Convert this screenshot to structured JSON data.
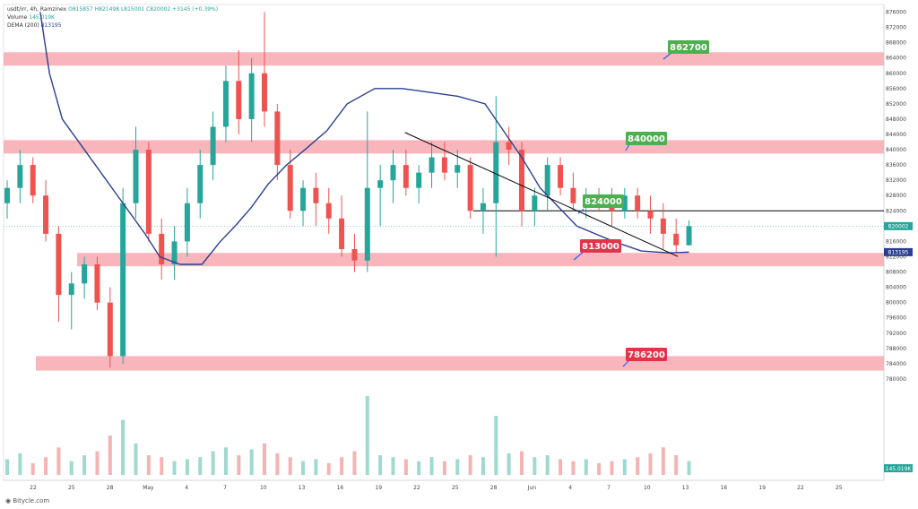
{
  "legend": {
    "symbol_line": "usdt/irr, 4h, Ramzinex",
    "ohlc": "O815857 H821498 L815001 C820002 +3145 (+0.39%)",
    "volume_label": "Volume",
    "volume_value": "145.019K",
    "dema_label": "DEMA (200)",
    "dema_value": "813195"
  },
  "footer": {
    "text": "Bitycle.com"
  },
  "colors": {
    "up": "#26a69a",
    "down": "#ef5350",
    "zone": "#f7a8b0",
    "dema": "#2b3f8f",
    "label_green": "#4caf50",
    "label_red": "#e0344a"
  },
  "chart_data": {
    "type": "candlestick",
    "timeframe": "4h",
    "ylim": [
      776000,
      878000
    ],
    "y_ticks": [
      780000,
      784000,
      788000,
      792000,
      796000,
      800000,
      804000,
      808000,
      812000,
      816000,
      820000,
      824000,
      828000,
      832000,
      836000,
      840000,
      844000,
      848000,
      852000,
      856000,
      860000,
      864000,
      868000,
      872000,
      876000
    ],
    "x_ticks": [
      "22",
      "25",
      "28",
      "May",
      "4",
      "7",
      "10",
      "13",
      "16",
      "19",
      "22",
      "25",
      "28",
      "Jun",
      "4",
      "7",
      "10",
      "13",
      "16",
      "19",
      "22",
      "25"
    ],
    "last_price": 820002,
    "last_price_label": "820002",
    "dema_last_label": "813195",
    "volume_last_label": "145.019K",
    "support_resistance_zones": [
      {
        "label": "862700",
        "low": 862000,
        "high": 865500,
        "tag": "resistance"
      },
      {
        "label": "840000",
        "low": 839000,
        "high": 842500,
        "tag": "resistance"
      },
      {
        "label": "813000",
        "low": 809500,
        "high": 813000,
        "tag": "support"
      },
      {
        "label": "786200",
        "low": 782200,
        "high": 786000,
        "tag": "support"
      }
    ],
    "horizontal_lines": [
      {
        "label": "824000",
        "value": 824000
      }
    ],
    "trend_line": {
      "start": [
        19.6,
        844500
      ],
      "end": [
        41.3,
        813000
      ]
    },
    "candles": [
      [
        0,
        826000,
        832000,
        822000,
        830000
      ],
      [
        0.7,
        830000,
        840000,
        826000,
        836000
      ],
      [
        1.4,
        836000,
        838000,
        826000,
        828000
      ],
      [
        2.1,
        828000,
        832000,
        816000,
        818000
      ],
      [
        2.8,
        818000,
        820000,
        795000,
        802000
      ],
      [
        3.5,
        802000,
        808000,
        793000,
        805000
      ],
      [
        4.2,
        805000,
        812000,
        801000,
        810000
      ],
      [
        4.9,
        810000,
        812000,
        798000,
        800000
      ],
      [
        5.6,
        800000,
        804000,
        783000,
        786000
      ],
      [
        6.3,
        786000,
        830000,
        784000,
        826000
      ],
      [
        7.0,
        826000,
        846000,
        822000,
        840000
      ],
      [
        7.7,
        840000,
        842000,
        816000,
        818000
      ],
      [
        8.4,
        818000,
        822000,
        806000,
        810000
      ],
      [
        9.1,
        810000,
        820000,
        806000,
        816000
      ],
      [
        9.8,
        816000,
        830000,
        812000,
        826000
      ],
      [
        10.5,
        826000,
        840000,
        822000,
        836000
      ],
      [
        11.2,
        836000,
        850000,
        832000,
        846000
      ],
      [
        11.9,
        846000,
        862000,
        842000,
        858000
      ],
      [
        12.6,
        858000,
        866000,
        844000,
        848000
      ],
      [
        13.3,
        848000,
        864000,
        842000,
        860000
      ],
      [
        14.0,
        860000,
        876000,
        846000,
        850000
      ],
      [
        14.7,
        850000,
        852000,
        832000,
        836000
      ],
      [
        15.4,
        836000,
        840000,
        822000,
        824000
      ],
      [
        16.1,
        824000,
        832000,
        820000,
        830000
      ],
      [
        16.8,
        830000,
        834000,
        820000,
        826000
      ],
      [
        17.5,
        826000,
        830000,
        818000,
        822000
      ],
      [
        18.2,
        822000,
        828000,
        812000,
        814000
      ],
      [
        18.9,
        814000,
        818000,
        808000,
        811000
      ],
      [
        19.6,
        811000,
        850000,
        808000,
        830000
      ],
      [
        20.3,
        830000,
        836000,
        820000,
        832000
      ],
      [
        21.0,
        832000,
        840000,
        826000,
        836000
      ],
      [
        21.7,
        836000,
        840000,
        828000,
        830000
      ],
      [
        22.4,
        830000,
        836000,
        826000,
        834000
      ],
      [
        23.1,
        834000,
        842000,
        830000,
        838000
      ],
      [
        23.8,
        838000,
        842000,
        832000,
        834000
      ],
      [
        24.5,
        834000,
        840000,
        830000,
        836000
      ],
      [
        25.2,
        836000,
        838000,
        822000,
        824000
      ],
      [
        25.9,
        824000,
        830000,
        818000,
        826000
      ],
      [
        26.6,
        826000,
        854000,
        812000,
        842000
      ],
      [
        27.3,
        842000,
        846000,
        836000,
        840000
      ],
      [
        28.0,
        840000,
        842000,
        820000,
        824000
      ],
      [
        28.7,
        824000,
        830000,
        820000,
        828000
      ],
      [
        29.4,
        828000,
        838000,
        824000,
        836000
      ],
      [
        30.1,
        836000,
        838000,
        828000,
        830000
      ],
      [
        30.8,
        830000,
        834000,
        824000,
        826000
      ],
      [
        31.5,
        826000,
        830000,
        822000,
        828000
      ],
      [
        32.2,
        828000,
        830000,
        824000,
        826000
      ],
      [
        32.9,
        826000,
        830000,
        820000,
        824000
      ],
      [
        33.6,
        824000,
        830000,
        822000,
        828000
      ],
      [
        34.3,
        828000,
        830000,
        822000,
        824000
      ],
      [
        35.0,
        824000,
        828000,
        818000,
        822000
      ],
      [
        35.7,
        822000,
        826000,
        814000,
        818000
      ],
      [
        36.4,
        818000,
        822000,
        813000,
        815000
      ],
      [
        37.1,
        815000,
        821500,
        815000,
        820000
      ]
    ],
    "dema_points": [
      [
        1.8,
        876000
      ],
      [
        2.3,
        860000
      ],
      [
        3.0,
        848000
      ],
      [
        4.5,
        838000
      ],
      [
        6.0,
        828000
      ],
      [
        7.5,
        818000
      ],
      [
        8.3,
        812000
      ],
      [
        9.4,
        810000
      ],
      [
        10.6,
        810000
      ],
      [
        11.6,
        816000
      ],
      [
        12.4,
        820000
      ],
      [
        13.3,
        825000
      ],
      [
        14.2,
        831000
      ],
      [
        15.2,
        836000
      ],
      [
        16.2,
        840000
      ],
      [
        17.4,
        845000
      ],
      [
        18.5,
        852000
      ],
      [
        20.0,
        856000
      ],
      [
        21.5,
        856000
      ],
      [
        23.0,
        855000
      ],
      [
        24.5,
        854000
      ],
      [
        26.0,
        852000
      ],
      [
        27.0,
        845000
      ],
      [
        28.0,
        838000
      ],
      [
        29.0,
        830000
      ],
      [
        30.0,
        825000
      ],
      [
        31.0,
        820000
      ],
      [
        32.0,
        818000
      ],
      [
        33.0,
        816000
      ],
      [
        34.5,
        813500
      ],
      [
        36.0,
        813000
      ],
      [
        37.1,
        813195
      ]
    ],
    "volume": [
      [
        0,
        8,
        1
      ],
      [
        0.7,
        11,
        1
      ],
      [
        1.4,
        6,
        0
      ],
      [
        2.1,
        9,
        0
      ],
      [
        2.8,
        14,
        0
      ],
      [
        3.5,
        7,
        1
      ],
      [
        4.2,
        10,
        1
      ],
      [
        4.9,
        12,
        0
      ],
      [
        5.6,
        20,
        0
      ],
      [
        6.3,
        28,
        1
      ],
      [
        7.0,
        16,
        1
      ],
      [
        7.7,
        10,
        0
      ],
      [
        8.4,
        9,
        0
      ],
      [
        9.1,
        7,
        1
      ],
      [
        9.8,
        8,
        1
      ],
      [
        10.5,
        9,
        1
      ],
      [
        11.2,
        12,
        1
      ],
      [
        11.9,
        14,
        1
      ],
      [
        12.6,
        10,
        0
      ],
      [
        13.3,
        13,
        1
      ],
      [
        14.0,
        16,
        0
      ],
      [
        14.7,
        11,
        0
      ],
      [
        15.4,
        9,
        0
      ],
      [
        16.1,
        7,
        1
      ],
      [
        16.8,
        8,
        1
      ],
      [
        17.5,
        6,
        0
      ],
      [
        18.2,
        9,
        0
      ],
      [
        18.9,
        12,
        0
      ],
      [
        19.6,
        40,
        1
      ],
      [
        20.3,
        10,
        1
      ],
      [
        21.0,
        9,
        1
      ],
      [
        21.7,
        8,
        0
      ],
      [
        22.4,
        7,
        1
      ],
      [
        23.1,
        9,
        1
      ],
      [
        23.8,
        7,
        0
      ],
      [
        24.5,
        8,
        1
      ],
      [
        25.2,
        10,
        0
      ],
      [
        25.9,
        9,
        1
      ],
      [
        26.6,
        30,
        1
      ],
      [
        27.3,
        11,
        1
      ],
      [
        28.0,
        12,
        0
      ],
      [
        28.7,
        9,
        1
      ],
      [
        29.4,
        10,
        1
      ],
      [
        30.1,
        8,
        0
      ],
      [
        30.8,
        7,
        0
      ],
      [
        31.5,
        8,
        1
      ],
      [
        32.2,
        6,
        0
      ],
      [
        32.9,
        7,
        0
      ],
      [
        33.6,
        8,
        1
      ],
      [
        34.3,
        9,
        0
      ],
      [
        35.0,
        11,
        0
      ],
      [
        35.7,
        14,
        0
      ],
      [
        36.4,
        10,
        0
      ],
      [
        37.1,
        7,
        1
      ]
    ]
  }
}
